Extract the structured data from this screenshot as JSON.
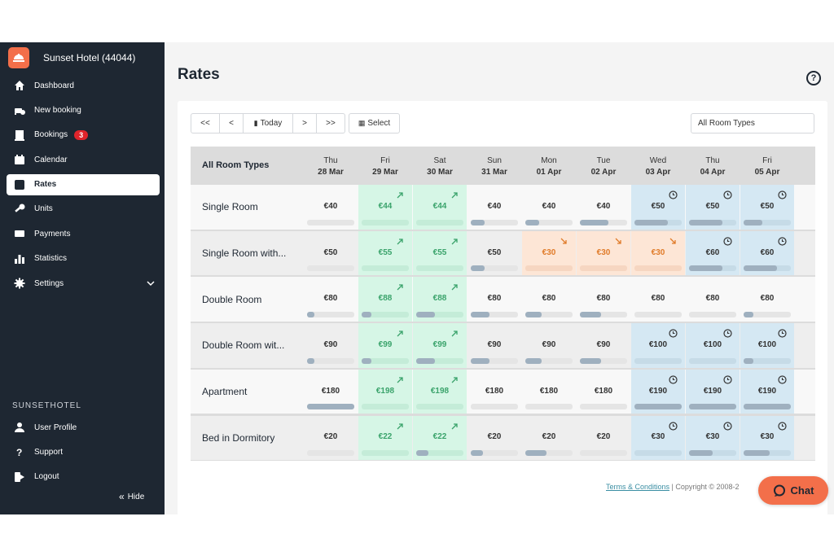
{
  "hotel": {
    "name": "Sunset Hotel (44044)"
  },
  "sidebar": {
    "items": [
      {
        "key": "dashboard",
        "label": "Dashboard",
        "icon": "home-icon"
      },
      {
        "key": "new-booking",
        "label": "New booking",
        "icon": "bed-plus-icon"
      },
      {
        "key": "bookings",
        "label": "Bookings",
        "icon": "building-icon",
        "badge": "3"
      },
      {
        "key": "calendar",
        "label": "Calendar",
        "icon": "calendar-icon"
      },
      {
        "key": "rates",
        "label": "Rates",
        "icon": "dollar-icon",
        "active": true
      },
      {
        "key": "units",
        "label": "Units",
        "icon": "key-icon"
      },
      {
        "key": "payments",
        "label": "Payments",
        "icon": "card-icon"
      },
      {
        "key": "statistics",
        "label": "Statistics",
        "icon": "bar-chart-icon"
      },
      {
        "key": "settings",
        "label": "Settings",
        "icon": "gear-icon"
      }
    ],
    "section_label": "SUNSETHOTEL",
    "bottom_items": [
      {
        "key": "user-profile",
        "label": "User Profile",
        "icon": "user-icon"
      },
      {
        "key": "support",
        "label": "Support",
        "icon": "question-icon"
      },
      {
        "key": "logout",
        "label": "Logout",
        "icon": "logout-icon"
      }
    ],
    "hide_label": "Hide"
  },
  "page": {
    "title": "Rates"
  },
  "toolbar": {
    "first_label": "<<",
    "prev_label": "<",
    "today_label": "Today",
    "next_label": ">",
    "last_label": ">>",
    "select_label": "Select",
    "room_type_filter": "All Room Types"
  },
  "grid": {
    "header_label": "All Room Types",
    "days": [
      {
        "weekday": "Thu",
        "date": "28 Mar"
      },
      {
        "weekday": "Fri",
        "date": "29 Mar"
      },
      {
        "weekday": "Sat",
        "date": "30 Mar"
      },
      {
        "weekday": "Sun",
        "date": "31 Mar"
      },
      {
        "weekday": "Mon",
        "date": "01 Apr"
      },
      {
        "weekday": "Tue",
        "date": "02 Apr"
      },
      {
        "weekday": "Wed",
        "date": "03 Apr"
      },
      {
        "weekday": "Thu",
        "date": "04 Apr"
      },
      {
        "weekday": "Fri",
        "date": "05 Apr"
      }
    ],
    "rows": [
      {
        "name": "Single Room",
        "cells": [
          {
            "price": "€40",
            "status": "normal",
            "occupancy": 0.0
          },
          {
            "price": "€44",
            "status": "up",
            "occupancy": 0.0
          },
          {
            "price": "€44",
            "status": "up",
            "occupancy": 0.0
          },
          {
            "price": "€40",
            "status": "normal",
            "occupancy": 0.3
          },
          {
            "price": "€40",
            "status": "normal",
            "occupancy": 0.3
          },
          {
            "price": "€40",
            "status": "normal",
            "occupancy": 0.6
          },
          {
            "price": "€50",
            "status": "clock",
            "occupancy": 0.7
          },
          {
            "price": "€50",
            "status": "clock",
            "occupancy": 0.7
          },
          {
            "price": "€50",
            "status": "clock",
            "occupancy": 0.4
          }
        ]
      },
      {
        "name": "Single Room with...",
        "cells": [
          {
            "price": "€50",
            "status": "normal",
            "occupancy": 0.0
          },
          {
            "price": "€55",
            "status": "up",
            "occupancy": 0.0
          },
          {
            "price": "€55",
            "status": "up",
            "occupancy": 0.0
          },
          {
            "price": "€50",
            "status": "normal",
            "occupancy": 0.3
          },
          {
            "price": "€30",
            "status": "down",
            "occupancy": 0.0
          },
          {
            "price": "€30",
            "status": "down",
            "occupancy": 0.0
          },
          {
            "price": "€30",
            "status": "down",
            "occupancy": 0.0
          },
          {
            "price": "€60",
            "status": "clock",
            "occupancy": 0.7
          },
          {
            "price": "€60",
            "status": "clock",
            "occupancy": 0.7
          }
        ]
      },
      {
        "name": "Double Room",
        "cells": [
          {
            "price": "€80",
            "status": "normal",
            "occupancy": 0.15
          },
          {
            "price": "€88",
            "status": "up",
            "occupancy": 0.2
          },
          {
            "price": "€88",
            "status": "up",
            "occupancy": 0.4
          },
          {
            "price": "€80",
            "status": "normal",
            "occupancy": 0.4
          },
          {
            "price": "€80",
            "status": "normal",
            "occupancy": 0.35
          },
          {
            "price": "€80",
            "status": "normal",
            "occupancy": 0.45
          },
          {
            "price": "€80",
            "status": "normal",
            "occupancy": 0.0
          },
          {
            "price": "€80",
            "status": "normal",
            "occupancy": 0.0
          },
          {
            "price": "€80",
            "status": "normal",
            "occupancy": 0.2
          }
        ]
      },
      {
        "name": "Double Room wit...",
        "cells": [
          {
            "price": "€90",
            "status": "normal",
            "occupancy": 0.15
          },
          {
            "price": "€99",
            "status": "up",
            "occupancy": 0.2
          },
          {
            "price": "€99",
            "status": "up",
            "occupancy": 0.4
          },
          {
            "price": "€90",
            "status": "normal",
            "occupancy": 0.4
          },
          {
            "price": "€90",
            "status": "normal",
            "occupancy": 0.35
          },
          {
            "price": "€90",
            "status": "normal",
            "occupancy": 0.45
          },
          {
            "price": "€100",
            "status": "clock",
            "occupancy": 0.0
          },
          {
            "price": "€100",
            "status": "clock",
            "occupancy": 0.0
          },
          {
            "price": "€100",
            "status": "clock",
            "occupancy": 0.2
          }
        ]
      },
      {
        "name": "Apartment",
        "cells": [
          {
            "price": "€180",
            "status": "normal",
            "occupancy": 1.0
          },
          {
            "price": "€198",
            "status": "up",
            "occupancy": 0.0
          },
          {
            "price": "€198",
            "status": "up",
            "occupancy": 0.0
          },
          {
            "price": "€180",
            "status": "normal",
            "occupancy": 0.0
          },
          {
            "price": "€180",
            "status": "normal",
            "occupancy": 0.0
          },
          {
            "price": "€180",
            "status": "normal",
            "occupancy": 0.0
          },
          {
            "price": "€190",
            "status": "clock",
            "occupancy": 1.0
          },
          {
            "price": "€190",
            "status": "clock",
            "occupancy": 1.0
          },
          {
            "price": "€190",
            "status": "clock",
            "occupancy": 1.0
          }
        ]
      },
      {
        "name": "Bed in Dormitory",
        "cells": [
          {
            "price": "€20",
            "status": "normal",
            "occupancy": 0.0
          },
          {
            "price": "€22",
            "status": "up",
            "occupancy": 0.0
          },
          {
            "price": "€22",
            "status": "up",
            "occupancy": 0.25
          },
          {
            "price": "€20",
            "status": "normal",
            "occupancy": 0.25
          },
          {
            "price": "€20",
            "status": "normal",
            "occupancy": 0.45
          },
          {
            "price": "€20",
            "status": "normal",
            "occupancy": 0.0
          },
          {
            "price": "€30",
            "status": "clock",
            "occupancy": 0.0
          },
          {
            "price": "€30",
            "status": "clock",
            "occupancy": 0.5
          },
          {
            "price": "€30",
            "status": "clock",
            "occupancy": 0.55
          }
        ]
      }
    ]
  },
  "footer": {
    "terms_label": "Terms & Conditions",
    "copyright": "| Copyright © 2008-2"
  },
  "chat": {
    "label": "Chat"
  },
  "colors": {
    "accent": "#f36f4a",
    "sidebar": "#1e2732",
    "up": "#d6f6e6",
    "down": "#fde6d6",
    "clock": "#d5e8f3",
    "badge": "#e0242b"
  }
}
